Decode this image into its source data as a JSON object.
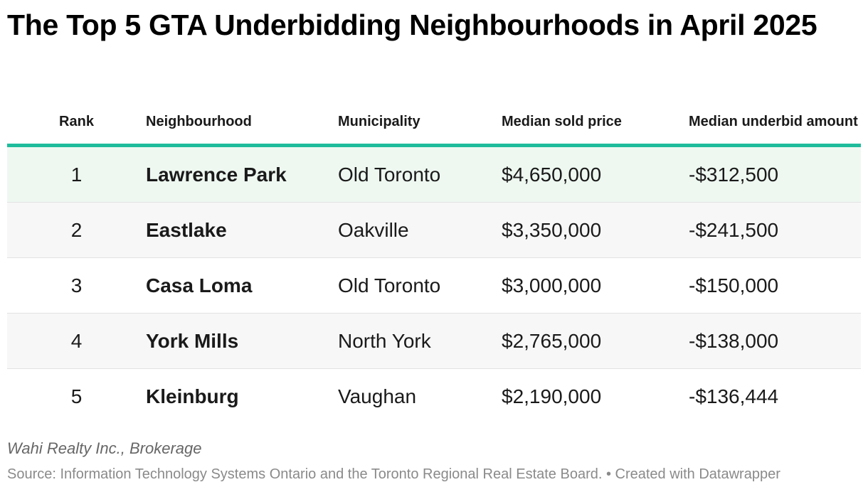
{
  "title": "The Top 5 GTA Underbidding Neighbourhoods in April 2025",
  "chart_data": {
    "type": "table",
    "title": "The Top 5 GTA Underbidding Neighbourhoods in April 2025",
    "columns": [
      "Rank",
      "Neighbourhood",
      "Municipality",
      "Median sold price",
      "Median underbid amount"
    ],
    "rows": [
      {
        "rank": "1",
        "neighbourhood": "Lawrence Park",
        "municipality": "Old Toronto",
        "median_sold_price": "$4,650,000",
        "median_underbid_amount": "-$312,500"
      },
      {
        "rank": "2",
        "neighbourhood": "Eastlake",
        "municipality": "Oakville",
        "median_sold_price": "$3,350,000",
        "median_underbid_amount": "-$241,500"
      },
      {
        "rank": "3",
        "neighbourhood": "Casa Loma",
        "municipality": "Old Toronto",
        "median_sold_price": "$3,000,000",
        "median_underbid_amount": "-$150,000"
      },
      {
        "rank": "4",
        "neighbourhood": "York Mills",
        "municipality": "North York",
        "median_sold_price": "$2,765,000",
        "median_underbid_amount": "-$138,000"
      },
      {
        "rank": "5",
        "neighbourhood": "Kleinburg",
        "municipality": "Vaughan",
        "median_sold_price": "$2,190,000",
        "median_underbid_amount": "-$136,444"
      }
    ]
  },
  "footer": {
    "brand": "Wahi Realty Inc., Brokerage",
    "source": "Source: Information Technology Systems Ontario and the Toronto Regional Real Estate Board. • Created with Datawrapper"
  },
  "colors": {
    "header_rule": "#1fbc9c",
    "highlight_row": "#eef8f1",
    "stripe_row": "#f7f7f7"
  }
}
